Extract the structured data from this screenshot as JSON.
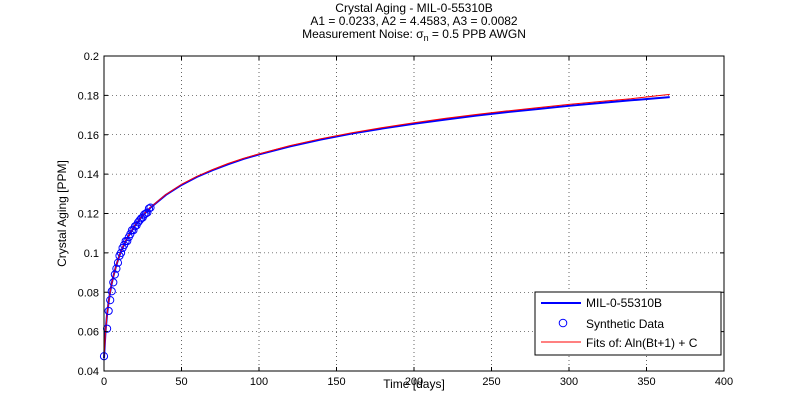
{
  "chart_data": {
    "type": "line",
    "title_lines": [
      "Crystal Aging - MIL-0-55310B",
      "A1 = 0.0233, A2 = 4.4583, A3 = 0.0082"
    ],
    "title_line3": {
      "prefix": "Measurement Noise: ",
      "sigma": "σ",
      "subscript": "n",
      "suffix": " = 0.5 PPB AWGN"
    },
    "xlabel": "Time [days]",
    "ylabel": "Crystal Aging [PPM]",
    "xlim": [
      0,
      400
    ],
    "ylim": [
      0.04,
      0.2
    ],
    "xticks": [
      0,
      50,
      100,
      150,
      200,
      250,
      300,
      350,
      400
    ],
    "yticks": [
      0.04,
      0.06,
      0.08,
      0.1,
      0.12,
      0.14,
      0.16,
      0.18,
      0.2
    ],
    "xtick_labels": [
      "0",
      "50",
      "100",
      "150",
      "200",
      "250",
      "300",
      "350",
      "400"
    ],
    "ytick_labels": [
      "0.04",
      "0.06",
      "0.08",
      "0.1",
      "0.12",
      "0.14",
      "0.16",
      "0.18",
      "0.2"
    ],
    "grid": true,
    "legend_position": "bottom-right",
    "series": [
      {
        "name": "MIL-0-55310B",
        "style": "line",
        "color": "#0000ff",
        "x": [
          0,
          1,
          2,
          3,
          4,
          5,
          6,
          8,
          10,
          12,
          15,
          20,
          25,
          30,
          40,
          50,
          60,
          70,
          80,
          90,
          100,
          120,
          140,
          160,
          180,
          200,
          220,
          240,
          260,
          280,
          300,
          320,
          340,
          365
        ],
        "y": [
          0.0466,
          0.0603,
          0.0689,
          0.0752,
          0.0803,
          0.0845,
          0.088,
          0.0939,
          0.0987,
          0.1026,
          0.1075,
          0.1139,
          0.1189,
          0.123,
          0.1295,
          0.1345,
          0.1386,
          0.142,
          0.145,
          0.1477,
          0.15,
          0.1541,
          0.1576,
          0.1606,
          0.1632,
          0.1656,
          0.1677,
          0.1697,
          0.1715,
          0.1731,
          0.1747,
          0.1761,
          0.1775,
          0.1791
        ]
      },
      {
        "name": "Synthetic Data",
        "style": "markers",
        "color": "#0000ff",
        "x": [
          0,
          2,
          3,
          4,
          5,
          6,
          7,
          8,
          9,
          10,
          11,
          12,
          13,
          14,
          15,
          16,
          17,
          18,
          19,
          20,
          21,
          22,
          23,
          24,
          25,
          26,
          27,
          28,
          29,
          30
        ],
        "y": [
          0.0475,
          0.0615,
          0.0705,
          0.076,
          0.0805,
          0.085,
          0.089,
          0.092,
          0.095,
          0.0985,
          0.1,
          0.1025,
          0.104,
          0.106,
          0.106,
          0.108,
          0.1095,
          0.1115,
          0.1115,
          0.1135,
          0.114,
          0.1155,
          0.1165,
          0.1175,
          0.118,
          0.1195,
          0.12,
          0.1205,
          0.1225,
          0.123
        ]
      },
      {
        "name": "Fits of:  Aln(Bt+1) + C",
        "style": "line",
        "color": "#ff0000",
        "x": [
          0,
          1,
          2,
          3,
          4,
          5,
          6,
          8,
          10,
          12,
          15,
          20,
          25,
          30,
          40,
          50,
          60,
          70,
          80,
          90,
          100,
          120,
          140,
          160,
          180,
          200,
          220,
          240,
          260,
          280,
          300,
          320,
          340,
          365
        ],
        "y": [
          0.0466,
          0.0603,
          0.0689,
          0.0752,
          0.0803,
          0.0845,
          0.088,
          0.094,
          0.0988,
          0.1028,
          0.1077,
          0.1141,
          0.1191,
          0.1232,
          0.1297,
          0.1348,
          0.1389,
          0.1423,
          0.1454,
          0.148,
          0.1503,
          0.1545,
          0.158,
          0.161,
          0.1637,
          0.1661,
          0.1683,
          0.1703,
          0.1721,
          0.1738,
          0.1754,
          0.1769,
          0.1783,
          0.1805
        ]
      }
    ]
  }
}
